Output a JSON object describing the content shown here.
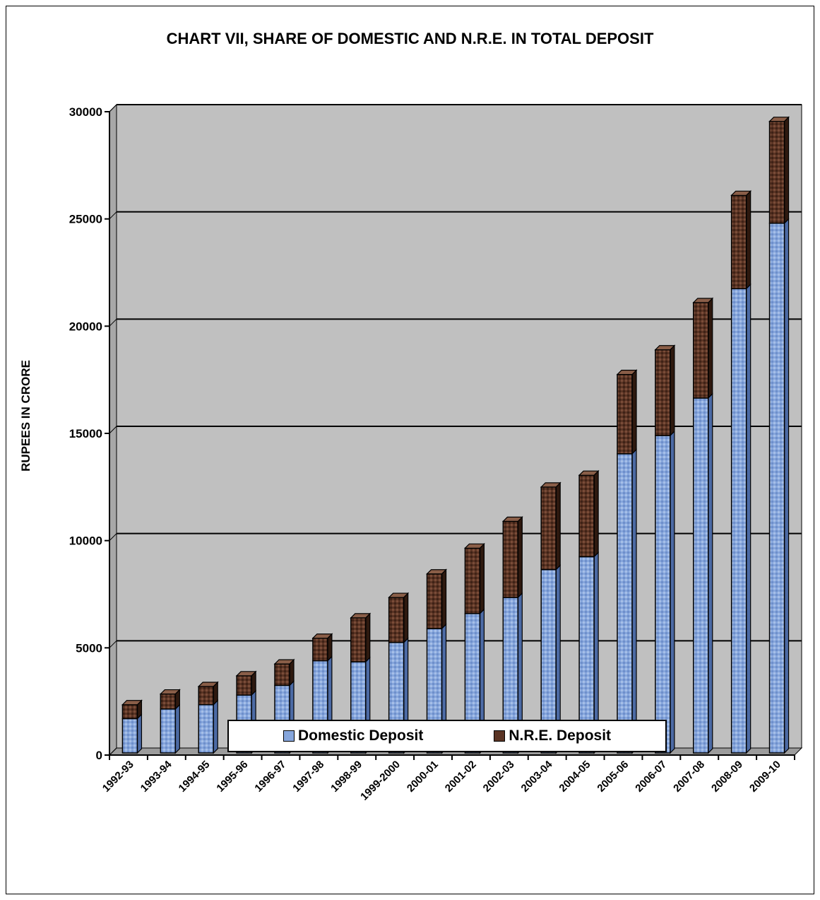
{
  "chart_data": {
    "type": "bar",
    "stacked": true,
    "title": "CHART VII, SHARE OF DOMESTIC AND N.R.E. IN TOTAL DEPOSIT",
    "xlabel": "",
    "ylabel": "RUPEES IN CRORE",
    "ylim": [
      0,
      30000
    ],
    "yticks": [
      0,
      5000,
      10000,
      15000,
      20000,
      25000,
      30000
    ],
    "grid": true,
    "legend_position": "bottom",
    "categories": [
      "1992-93",
      "1993-94",
      "1994-95",
      "1995-96",
      "1996-97",
      "1997-98",
      "1998-99",
      "1999-2000",
      "2000-01",
      "2001-02",
      "2002-03",
      "2003-04",
      "2004-05",
      "2005-06",
      "2006-07",
      "2007-08",
      "2008-09",
      "2009-10"
    ],
    "series": [
      {
        "name": "Domestic Deposit",
        "color": "#7f9fd6",
        "values": [
          1600,
          2050,
          2250,
          2700,
          3150,
          4300,
          4250,
          5150,
          5800,
          6500,
          7250,
          8550,
          9150,
          13950,
          14800,
          16550,
          21650,
          24700
        ]
      },
      {
        "name": "N.R.E. Deposit",
        "color": "#5a3424",
        "values": [
          650,
          700,
          850,
          900,
          1000,
          1050,
          2050,
          2100,
          2550,
          3050,
          3550,
          3850,
          3800,
          3700,
          4000,
          4450,
          4350,
          4750
        ]
      }
    ]
  }
}
